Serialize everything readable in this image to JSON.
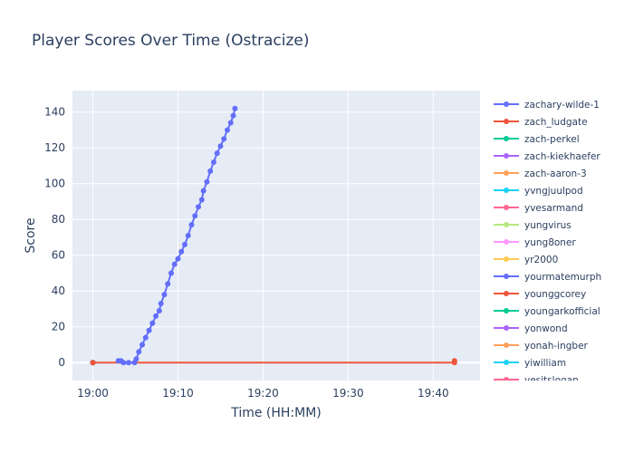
{
  "chart_data": {
    "type": "line",
    "title": "Player Scores Over Time (Ostracize)",
    "xlabel": "Time (HH:MM)",
    "ylabel": "Score",
    "x_ticks": [
      "19:00",
      "19:10",
      "19:20",
      "19:30",
      "19:40"
    ],
    "y_ticks": [
      0,
      20,
      40,
      60,
      80,
      100,
      120,
      140
    ],
    "xlim": [
      "18:57.6",
      "19:45.5"
    ],
    "ylim": [
      -10,
      152
    ],
    "grid": true,
    "legend_position": "right",
    "series": [
      {
        "name": "zachary-wilde-1",
        "color": "#636efa",
        "points": [
          [
            3.0,
            1
          ],
          [
            3.3,
            1
          ],
          [
            3.6,
            0
          ],
          [
            4.2,
            0
          ],
          [
            4.9,
            0
          ],
          [
            5.1,
            2
          ],
          [
            5.4,
            6
          ],
          [
            5.8,
            10
          ],
          [
            6.2,
            14
          ],
          [
            6.6,
            18
          ],
          [
            7.0,
            22
          ],
          [
            7.4,
            26
          ],
          [
            7.8,
            29
          ],
          [
            8.0,
            33
          ],
          [
            8.4,
            38
          ],
          [
            8.8,
            44
          ],
          [
            9.2,
            50
          ],
          [
            9.6,
            55
          ],
          [
            10.0,
            58
          ],
          [
            10.4,
            62
          ],
          [
            10.8,
            66
          ],
          [
            11.2,
            71
          ],
          [
            11.6,
            77
          ],
          [
            12.0,
            82
          ],
          [
            12.4,
            87
          ],
          [
            12.8,
            91
          ],
          [
            13.0,
            96
          ],
          [
            13.4,
            101
          ],
          [
            13.8,
            107
          ],
          [
            14.2,
            112
          ],
          [
            14.6,
            117
          ],
          [
            15.0,
            121
          ],
          [
            15.4,
            125
          ],
          [
            15.8,
            130
          ],
          [
            16.2,
            134
          ],
          [
            16.5,
            138
          ],
          [
            16.7,
            142
          ]
        ]
      },
      {
        "name": "zach_ludgate",
        "color": "#EF553B",
        "points": [
          [
            0.0,
            0
          ],
          [
            42.5,
            0
          ],
          [
            42.5,
            1
          ]
        ]
      },
      {
        "name": "zach-perkel",
        "color": "#00cc96",
        "points": [
          [
            0.0,
            0
          ]
        ]
      },
      {
        "name": "zach-kiekhaefer",
        "color": "#ab63fa",
        "points": [
          [
            0.0,
            0
          ]
        ]
      },
      {
        "name": "zach-aaron-3",
        "color": "#FFA15A",
        "points": [
          [
            0.0,
            0
          ]
        ]
      },
      {
        "name": "yvngjuulpod",
        "color": "#19d3f3",
        "points": [
          [
            0.0,
            0
          ]
        ]
      },
      {
        "name": "yvesarmand",
        "color": "#FF6692",
        "points": [
          [
            0.0,
            0
          ]
        ]
      },
      {
        "name": "yungvirus",
        "color": "#B6E880",
        "points": [
          [
            0.0,
            0
          ]
        ]
      },
      {
        "name": "yung8oner",
        "color": "#FF97FF",
        "points": [
          [
            0.0,
            0
          ]
        ]
      },
      {
        "name": "yr2000",
        "color": "#FECB52",
        "points": [
          [
            0.0,
            0
          ]
        ]
      },
      {
        "name": "yourmatemurph",
        "color": "#636efa",
        "points": [
          [
            0.0,
            0
          ]
        ]
      },
      {
        "name": "younggcorey",
        "color": "#EF553B",
        "points": [
          [
            0.0,
            0
          ]
        ]
      },
      {
        "name": "youngarkofficial",
        "color": "#00cc96",
        "points": [
          [
            0.0,
            0
          ]
        ]
      },
      {
        "name": "yonwond",
        "color": "#ab63fa",
        "points": [
          [
            0.0,
            0
          ]
        ]
      },
      {
        "name": "yonah-ingber",
        "color": "#FFA15A",
        "points": [
          [
            0.0,
            0
          ]
        ]
      },
      {
        "name": "yiwilliam",
        "color": "#19d3f3",
        "points": [
          [
            0.0,
            0
          ]
        ]
      },
      {
        "name": "yesitslogan",
        "color": "#FF6692",
        "points": [
          [
            0.0,
            0
          ]
        ]
      }
    ]
  }
}
